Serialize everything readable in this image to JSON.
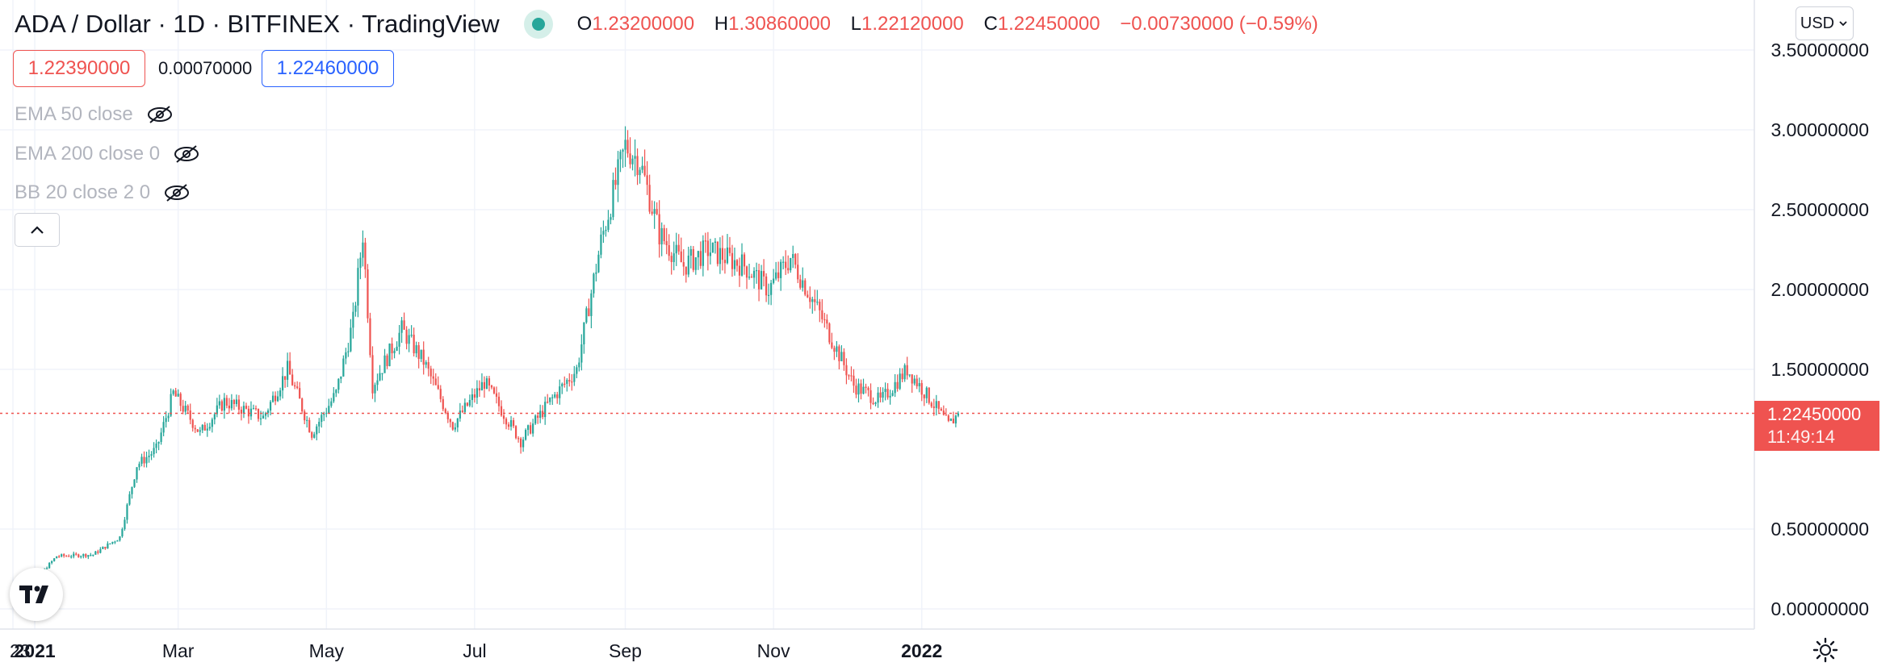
{
  "header": {
    "symbol_title": "ADA / Dollar · 1D · BITFINEX · TradingView",
    "ohlc": {
      "o_label": "O",
      "o": "1.23200000",
      "h_label": "H",
      "h": "1.30860000",
      "l_label": "L",
      "l": "1.22120000",
      "c_label": "C",
      "c": "1.22450000",
      "change": "−0.00730000 (−0.59%)"
    },
    "bid": "1.22390000",
    "spread": "0.00070000",
    "ask": "1.22460000",
    "indicators": [
      {
        "label": "EMA 50 close"
      },
      {
        "label": "EMA 200 close 0"
      },
      {
        "label": "BB 20 close 2 0"
      }
    ]
  },
  "currency_button": "USD",
  "last_price": {
    "value": "1.22450000",
    "countdown": "11:49:14"
  },
  "colors": {
    "up": "#26a69a",
    "down": "#ef5350",
    "grid": "#f0f3fa",
    "text": "#131722"
  },
  "chart_data": {
    "type": "candlestick",
    "x_axis_labels": [
      "23",
      "2021",
      "Mar",
      "May",
      "Jul",
      "Sep",
      "Nov",
      "2022"
    ],
    "y_axis_labels": [
      "3.50000000",
      "3.00000000",
      "2.50000000",
      "2.00000000",
      "1.50000000",
      "0.00000000",
      "0.50000000"
    ],
    "ylim": [
      0,
      3.5
    ],
    "price_path": [
      [
        "2020-12-23",
        0.13
      ],
      [
        "2021-01-01",
        0.18
      ],
      [
        "2021-01-10",
        0.33
      ],
      [
        "2021-01-25",
        0.34
      ],
      [
        "2021-02-05",
        0.45
      ],
      [
        "2021-02-12",
        0.9
      ],
      [
        "2021-02-20",
        1.0
      ],
      [
        "2021-02-27",
        1.35
      ],
      [
        "2021-03-10",
        1.1
      ],
      [
        "2021-03-20",
        1.3
      ],
      [
        "2021-04-05",
        1.2
      ],
      [
        "2021-04-15",
        1.5
      ],
      [
        "2021-04-25",
        1.1
      ],
      [
        "2021-05-05",
        1.35
      ],
      [
        "2021-05-12",
        1.8
      ],
      [
        "2021-05-16",
        2.35
      ],
      [
        "2021-05-20",
        1.4
      ],
      [
        "2021-06-01",
        1.75
      ],
      [
        "2021-06-10",
        1.55
      ],
      [
        "2021-06-22",
        1.15
      ],
      [
        "2021-07-05",
        1.42
      ],
      [
        "2021-07-20",
        1.05
      ],
      [
        "2021-08-01",
        1.3
      ],
      [
        "2021-08-12",
        1.5
      ],
      [
        "2021-08-22",
        2.3
      ],
      [
        "2021-09-01",
        2.9
      ],
      [
        "2021-09-07",
        2.8
      ],
      [
        "2021-09-15",
        2.35
      ],
      [
        "2021-09-25",
        2.15
      ],
      [
        "2021-10-05",
        2.25
      ],
      [
        "2021-10-20",
        2.15
      ],
      [
        "2021-10-30",
        2.0
      ],
      [
        "2021-11-08",
        2.2
      ],
      [
        "2021-11-20",
        1.85
      ],
      [
        "2021-12-04",
        1.4
      ],
      [
        "2021-12-15",
        1.3
      ],
      [
        "2021-12-26",
        1.5
      ],
      [
        "2022-01-05",
        1.3
      ],
      [
        "2022-01-12",
        1.15
      ],
      [
        "2022-01-16",
        1.22
      ]
    ],
    "last": 1.2245
  }
}
